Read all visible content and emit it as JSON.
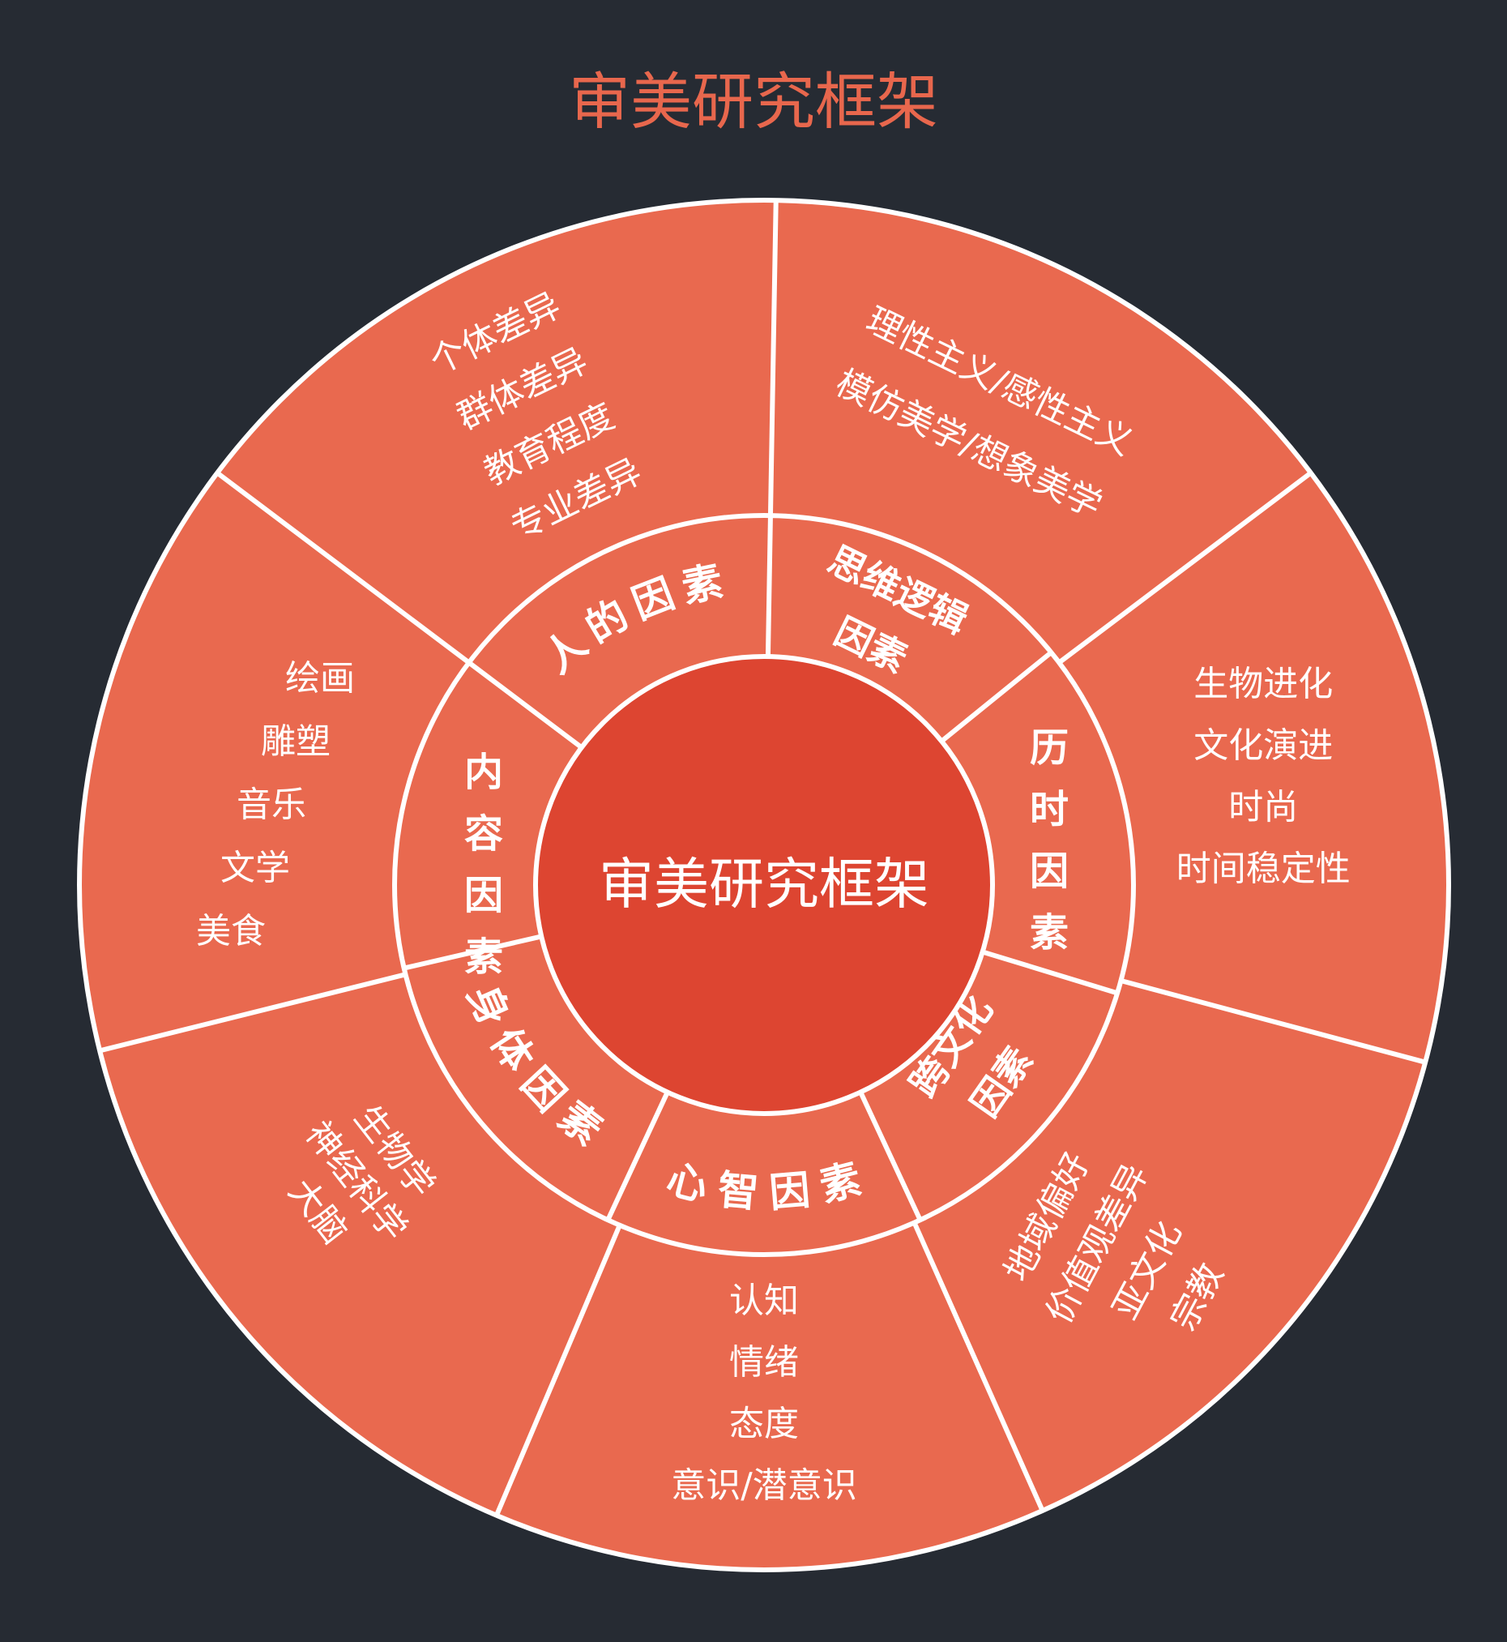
{
  "title": "审美研究框架",
  "center": {
    "label": "审美研究框架"
  },
  "colors": {
    "background": "#262b33",
    "title": "#e8674d",
    "ring": "#e9694f",
    "center": "#dd4531",
    "line": "#ffffff",
    "text": "#ffffff"
  },
  "sectors": [
    {
      "id": "human",
      "category": "人的因素",
      "items": [
        "个体差异",
        "群体差异",
        "教育程度",
        "专业差异"
      ]
    },
    {
      "id": "logic",
      "category": "思维逻辑因素",
      "items": [
        "理性主义/感性主义",
        "模仿美学/想象美学"
      ]
    },
    {
      "id": "diachronic",
      "category": "历时因素",
      "items": [
        "生物进化",
        "文化演进",
        "时尚",
        "时间稳定性"
      ]
    },
    {
      "id": "crosscultural",
      "category": "跨文化因素",
      "items": [
        "地域偏好",
        "价值观差异",
        "亚文化",
        "宗教"
      ]
    },
    {
      "id": "mind",
      "category": "心智因素",
      "items": [
        "认知",
        "情绪",
        "态度",
        "意识/潜意识"
      ]
    },
    {
      "id": "body",
      "category": "身体因素",
      "items": [
        "生物学",
        "神经科学",
        "大脑"
      ]
    },
    {
      "id": "content",
      "category": "内容因素",
      "items": [
        "绘画",
        "雕塑",
        "音乐",
        "文学",
        "美食"
      ]
    }
  ]
}
